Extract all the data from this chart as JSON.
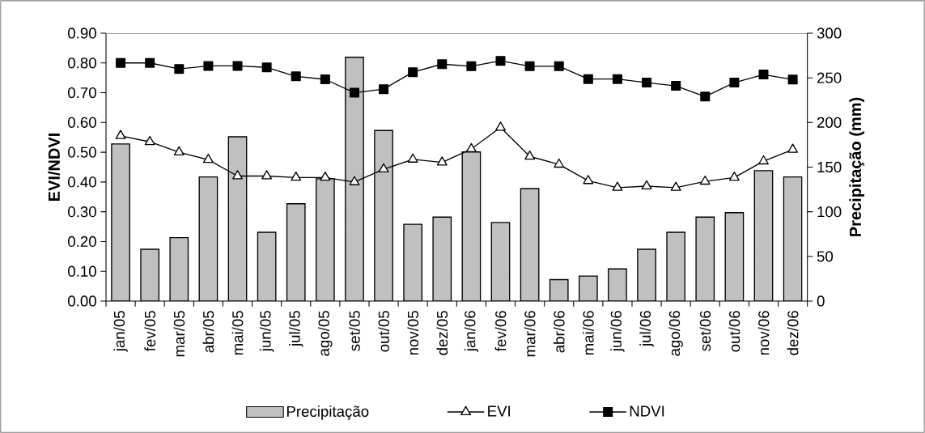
{
  "chart_data": {
    "type": "bar",
    "ylabel": "EVI/NDVI",
    "y2label": "Precipitação (mm)",
    "categories": [
      "jan/05",
      "fev/05",
      "mar/05",
      "abr/05",
      "mai/05",
      "jun/05",
      "jul/05",
      "ago/05",
      "set/05",
      "out/05",
      "nov/05",
      "dez/05",
      "jan/06",
      "fev/06",
      "mar/06",
      "abr/06",
      "mai/06",
      "jun/06",
      "jul/06",
      "ago/06",
      "set/06",
      "out/06",
      "nov/06",
      "dez/06"
    ],
    "series": [
      {
        "name": "Precipitação",
        "axis": "y2",
        "color": "#c0c0c0",
        "values": [
          176,
          58,
          71,
          139,
          184,
          77,
          109,
          137,
          273,
          191,
          86,
          94,
          167,
          88,
          126,
          24,
          28,
          36,
          58,
          77,
          94,
          99,
          146,
          139
        ]
      },
      {
        "name": "EVI",
        "type": "line",
        "marker": "triangle",
        "color": "#000000",
        "values": [
          0.555,
          0.535,
          0.5,
          0.475,
          0.42,
          0.42,
          0.415,
          0.415,
          0.4,
          0.443,
          0.476,
          0.466,
          0.511,
          0.583,
          0.486,
          0.459,
          0.404,
          0.381,
          0.386,
          0.381,
          0.402,
          0.415,
          0.47,
          0.509
        ]
      },
      {
        "name": "NDVI",
        "type": "line",
        "marker": "square",
        "color": "#000000",
        "values": [
          0.8,
          0.8,
          0.78,
          0.79,
          0.79,
          0.785,
          0.755,
          0.745,
          0.7,
          0.712,
          0.769,
          0.796,
          0.789,
          0.807,
          0.789,
          0.789,
          0.746,
          0.746,
          0.734,
          0.723,
          0.687,
          0.734,
          0.761,
          0.744
        ]
      }
    ],
    "ylim": [
      0,
      0.9
    ],
    "yticks": [
      {
        "value": 0,
        "label": "0.00"
      },
      {
        "value": 0.1,
        "label": "0.10"
      },
      {
        "value": 0.2,
        "label": "0.20"
      },
      {
        "value": 0.3,
        "label": "0.30"
      },
      {
        "value": 0.4,
        "label": "0.40"
      },
      {
        "value": 0.5,
        "label": "0.50"
      },
      {
        "value": 0.6,
        "label": "0.60"
      },
      {
        "value": 0.7,
        "label": "0.70"
      },
      {
        "value": 0.8,
        "label": "0.80"
      },
      {
        "value": 0.9,
        "label": "0.90"
      }
    ],
    "y2lim": [
      0,
      300
    ],
    "y2ticks": [
      0,
      50,
      100,
      150,
      200,
      250,
      300
    ],
    "grid": false,
    "legend": "bottom",
    "line_style": "solid"
  }
}
